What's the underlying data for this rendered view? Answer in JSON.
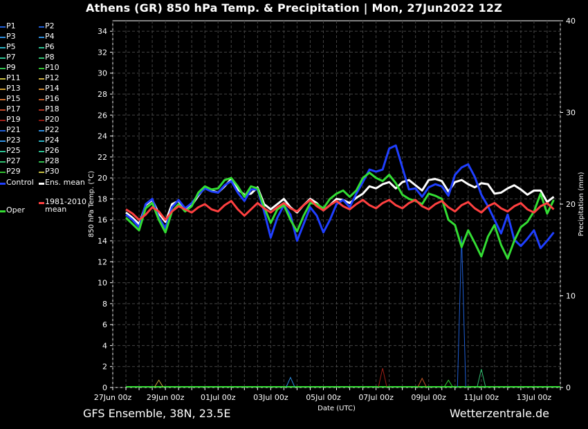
{
  "title": "Athens  (GR)  850 hPa Temp. & Precipitation | Mon, 27Jun2022 12Z",
  "footer_left": "GFS Ensemble, 38N, 23.5E",
  "footer_right": "Wetterzentrale.de",
  "legend": [
    {
      "label": "P1",
      "color": "#1f5fd6"
    },
    {
      "label": "P2",
      "color": "#1f5fd6"
    },
    {
      "label": "P3",
      "color": "#2f8fe0"
    },
    {
      "label": "P4",
      "color": "#2f8fe0"
    },
    {
      "label": "P5",
      "color": "#2bb0c0"
    },
    {
      "label": "P6",
      "color": "#2cc090"
    },
    {
      "label": "P7",
      "color": "#2cc090"
    },
    {
      "label": "P8",
      "color": "#30c070"
    },
    {
      "label": "P9",
      "color": "#30c050"
    },
    {
      "label": "P10",
      "color": "#30c030"
    },
    {
      "label": "P11",
      "color": "#c8c040"
    },
    {
      "label": "P12",
      "color": "#d0b040"
    },
    {
      "label": "P13",
      "color": "#d0a030"
    },
    {
      "label": "P14",
      "color": "#d08830"
    },
    {
      "label": "P15",
      "color": "#d07030"
    },
    {
      "label": "P16",
      "color": "#c05828"
    },
    {
      "label": "P17",
      "color": "#c04828"
    },
    {
      "label": "P18",
      "color": "#b03020"
    },
    {
      "label": "P19",
      "color": "#a02018"
    },
    {
      "label": "P20",
      "color": "#901810"
    },
    {
      "label": "P21",
      "color": "#1f5fd6"
    },
    {
      "label": "P22",
      "color": "#2f8fe0"
    },
    {
      "label": "P23",
      "color": "#2f8fe0"
    },
    {
      "label": "P24",
      "color": "#2bb0c0"
    },
    {
      "label": "P25",
      "color": "#2cc090"
    },
    {
      "label": "P26",
      "color": "#2cc090"
    },
    {
      "label": "P27",
      "color": "#30c070"
    },
    {
      "label": "P28",
      "color": "#30c050"
    },
    {
      "label": "P29",
      "color": "#30c030"
    },
    {
      "label": "P30",
      "color": "#c8c040"
    },
    {
      "label": "Control",
      "color": "#1f3fff"
    },
    {
      "label": "Ens. mean",
      "color": "#ffffff"
    },
    {
      "label": "Oper",
      "color": "#33dd33"
    },
    {
      "label": "1981-2010\nmean",
      "color": "#ff4040"
    }
  ],
  "chart_data": {
    "type": "line",
    "xlabel": "Date (UTC)",
    "ylabel": "850 hPa Temp. (°C)",
    "y2label": "Precipitation (mm)",
    "ylim": [
      0,
      35
    ],
    "yticks": [
      0,
      2,
      4,
      6,
      8,
      10,
      12,
      14,
      16,
      18,
      20,
      22,
      24,
      26,
      28,
      30,
      32,
      34
    ],
    "y2lim": [
      0,
      40
    ],
    "y2ticks": [
      0,
      10,
      20,
      30,
      40
    ],
    "xticklabels": [
      "27Jun 00z",
      "29Jun 00z",
      "01Jul 00z",
      "03Jul 00z",
      "05Jul 00z",
      "07Jul 00z",
      "09Jul 00z",
      "11Jul 00z",
      "13Jul 00z"
    ],
    "x_start": "2022-06-27T00:00Z",
    "x_end": "2022-07-14T00:00Z",
    "x": [
      "2022-06-27T12Z",
      "2022-06-27T18Z",
      "2022-06-28T00Z",
      "2022-06-28T06Z",
      "2022-06-28T12Z",
      "2022-06-28T18Z",
      "2022-06-29T00Z",
      "2022-06-29T06Z",
      "2022-06-29T12Z",
      "2022-06-29T18Z",
      "2022-06-30T00Z",
      "2022-06-30T06Z",
      "2022-06-30T12Z",
      "2022-06-30T18Z",
      "2022-07-01T00Z",
      "2022-07-01T06Z",
      "2022-07-01T12Z",
      "2022-07-01T18Z",
      "2022-07-02T00Z",
      "2022-07-02T06Z",
      "2022-07-02T12Z",
      "2022-07-02T18Z",
      "2022-07-03T00Z",
      "2022-07-03T06Z",
      "2022-07-03T12Z",
      "2022-07-03T18Z",
      "2022-07-04T00Z",
      "2022-07-04T06Z",
      "2022-07-04T12Z",
      "2022-07-04T18Z",
      "2022-07-05T00Z",
      "2022-07-05T06Z",
      "2022-07-05T12Z",
      "2022-07-05T18Z",
      "2022-07-06T00Z",
      "2022-07-06T06Z",
      "2022-07-06T12Z",
      "2022-07-06T18Z",
      "2022-07-07T00Z",
      "2022-07-07T06Z",
      "2022-07-07T12Z",
      "2022-07-07T18Z",
      "2022-07-08T00Z",
      "2022-07-08T06Z",
      "2022-07-08T12Z",
      "2022-07-08T18Z",
      "2022-07-09T00Z",
      "2022-07-09T06Z",
      "2022-07-09T12Z",
      "2022-07-09T18Z",
      "2022-07-10T00Z",
      "2022-07-10T06Z",
      "2022-07-10T12Z",
      "2022-07-10T18Z",
      "2022-07-11T00Z",
      "2022-07-11T06Z",
      "2022-07-11T12Z",
      "2022-07-11T18Z",
      "2022-07-12T00Z",
      "2022-07-12T06Z",
      "2022-07-12T12Z",
      "2022-07-12T18Z",
      "2022-07-13T00Z",
      "2022-07-13T06Z",
      "2022-07-13T12Z",
      "2022-07-13T18Z"
    ],
    "series": [
      {
        "name": "Ens. mean",
        "color": "#ffffff",
        "width": 3,
        "values": [
          16.7,
          16.2,
          15.6,
          17.4,
          17.9,
          16.6,
          15.8,
          17.5,
          17.8,
          17.0,
          17.4,
          18.3,
          19.1,
          18.8,
          18.6,
          19.2,
          19.9,
          18.9,
          18.4,
          18.5,
          19.1,
          17.5,
          17.0,
          17.5,
          18.0,
          17.2,
          16.7,
          17.4,
          18.0,
          17.6,
          16.9,
          17.4,
          18.0,
          17.9,
          17.6,
          18.1,
          18.5,
          19.2,
          19.0,
          19.4,
          19.6,
          19.0,
          19.6,
          19.8,
          19.3,
          18.8,
          19.8,
          19.9,
          19.7,
          18.7,
          19.6,
          19.8,
          19.4,
          19.1,
          19.5,
          19.4,
          18.5,
          18.6,
          19.0,
          19.3,
          18.9,
          18.4,
          18.8,
          18.8,
          17.7,
          18.2
        ]
      },
      {
        "name": "Control",
        "color": "#1f3fff",
        "width": 3,
        "values": [
          16.5,
          16.0,
          15.3,
          17.5,
          18.0,
          16.2,
          15.2,
          17.2,
          17.9,
          17.1,
          17.6,
          18.4,
          19.0,
          18.7,
          18.6,
          19.3,
          19.7,
          18.6,
          17.8,
          18.9,
          18.9,
          16.8,
          14.3,
          16.2,
          17.4,
          16.5,
          14.0,
          15.6,
          17.2,
          16.4,
          14.8,
          16.0,
          17.5,
          17.9,
          17.2,
          18.5,
          19.6,
          20.8,
          20.6,
          20.8,
          22.8,
          23.1,
          21.0,
          18.9,
          19.0,
          18.2,
          19.1,
          19.4,
          19.2,
          18.3,
          20.3,
          21.0,
          21.3,
          20.1,
          18.4,
          17.3,
          16.0,
          14.7,
          16.5,
          14.1,
          13.5,
          14.2,
          15.0,
          13.3,
          14.0,
          14.8
        ]
      },
      {
        "name": "Oper",
        "color": "#33dd33",
        "width": 3,
        "values": [
          16.2,
          15.6,
          15.0,
          17.1,
          17.6,
          16.0,
          14.8,
          16.8,
          17.5,
          16.8,
          17.3,
          18.6,
          19.2,
          18.9,
          19.0,
          19.8,
          20.0,
          19.2,
          18.2,
          19.2,
          19.0,
          17.2,
          15.7,
          17.0,
          17.4,
          16.0,
          14.9,
          16.4,
          17.6,
          17.5,
          17.1,
          18.0,
          18.5,
          18.8,
          18.2,
          18.8,
          20.0,
          20.5,
          20.0,
          19.7,
          20.3,
          19.5,
          18.4,
          18.0,
          17.8,
          17.5,
          18.5,
          18.3,
          18.0,
          16.0,
          15.5,
          13.4,
          15.0,
          13.8,
          12.5,
          14.4,
          15.5,
          13.6,
          12.3,
          14.0,
          15.3,
          15.8,
          16.8,
          18.5,
          16.6,
          17.9
        ]
      },
      {
        "name": "1981-2010 mean",
        "color": "#ff4040",
        "width": 3,
        "values": [
          17.0,
          16.6,
          16.0,
          16.5,
          17.2,
          16.8,
          16.0,
          16.8,
          17.3,
          17.0,
          16.7,
          17.2,
          17.5,
          17.0,
          16.8,
          17.4,
          17.8,
          17.0,
          16.4,
          17.0,
          17.6,
          17.1,
          16.7,
          17.2,
          17.6,
          17.1,
          16.8,
          17.4,
          17.9,
          17.3,
          16.9,
          17.4,
          17.8,
          17.3,
          17.0,
          17.5,
          17.9,
          17.4,
          17.1,
          17.6,
          17.9,
          17.4,
          17.1,
          17.6,
          17.9,
          17.3,
          17.0,
          17.5,
          17.8,
          17.2,
          16.8,
          17.4,
          17.7,
          17.1,
          16.7,
          17.3,
          17.6,
          17.1,
          16.8,
          17.3,
          17.6,
          17.0,
          16.7,
          17.3,
          17.6,
          17.0
        ]
      }
    ],
    "precip_spikes": [
      {
        "x": "2022-07-10T06Z",
        "value": 16.5,
        "color": "#1f5fd6"
      },
      {
        "x": "2022-07-07T06Z",
        "value": 2.1,
        "color": "#a02018"
      },
      {
        "x": "2022-07-11T00Z",
        "value": 2.0,
        "color": "#30c070"
      },
      {
        "x": "2022-07-03T18Z",
        "value": 1.1,
        "color": "#2f8fe0"
      },
      {
        "x": "2022-07-08T18Z",
        "value": 1.0,
        "color": "#c05828"
      },
      {
        "x": "2022-07-09T18Z",
        "value": 0.8,
        "color": "#33dd33"
      },
      {
        "x": "2022-06-28T18Z",
        "value": 0.8,
        "color": "#d0b040"
      }
    ]
  }
}
